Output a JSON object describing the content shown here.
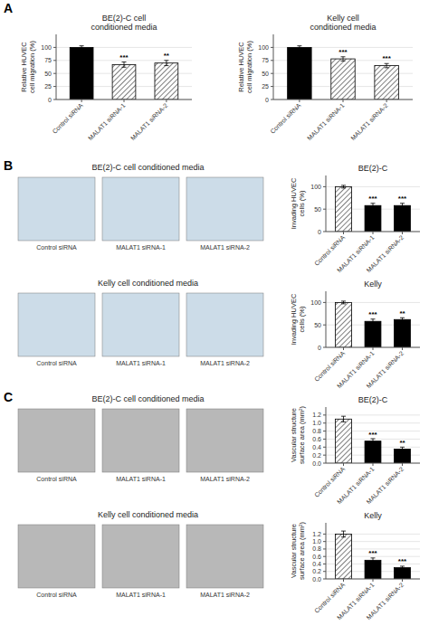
{
  "chart_data": [
    {
      "type": "bar",
      "title": "BE(2)-C cell\nconditioned media",
      "categories": [
        "Control siRNA",
        "MALAT1 siRNA-1",
        "MALAT1 siRNA-2"
      ],
      "values": [
        100,
        67,
        70
      ],
      "errors": [
        3,
        5,
        5
      ],
      "ylabel": "Relative HUVEC\ncell migration (%)",
      "ylim": [
        0,
        125
      ],
      "yticks": [
        0,
        25,
        50,
        75,
        100
      ],
      "annotations": [
        null,
        "***",
        "**"
      ],
      "colors": [
        "black",
        "hatched",
        "hatched"
      ]
    },
    {
      "type": "bar",
      "title": "Kelly cell\nconditioned media",
      "categories": [
        "Control siRNA",
        "MALAT1 siRNA-1",
        "MALAT1 siRNA-2"
      ],
      "values": [
        100,
        78,
        65
      ],
      "errors": [
        3,
        4,
        4
      ],
      "ylabel": "Relative HUVEC\ncell migration (%)",
      "ylim": [
        0,
        125
      ],
      "yticks": [
        0,
        25,
        50,
        75,
        100
      ],
      "annotations": [
        null,
        "***",
        "***"
      ],
      "colors": [
        "black",
        "hatched",
        "hatched"
      ]
    },
    {
      "type": "bar",
      "title": "BE(2)-C",
      "categories": [
        "Control siRNA",
        "MALAT1 siRNA-1",
        "MALAT1 siRNA-2"
      ],
      "values": [
        100,
        58,
        58
      ],
      "errors": [
        3,
        5,
        5
      ],
      "ylabel": "Invading HUVEC\ncells (%)",
      "ylim": [
        0,
        125
      ],
      "yticks": [
        0,
        50,
        100
      ],
      "annotations": [
        null,
        "***",
        "***"
      ],
      "colors": [
        "hatched",
        "black",
        "black"
      ]
    },
    {
      "type": "bar",
      "title": "Kelly",
      "categories": [
        "Control siRNA",
        "MALAT1 siRNA-1",
        "MALAT1 siRNA-2"
      ],
      "values": [
        100,
        58,
        62
      ],
      "errors": [
        3,
        5,
        4
      ],
      "ylabel": "Invading HUVEC\ncells (%)",
      "ylim": [
        0,
        125
      ],
      "yticks": [
        0,
        50,
        100
      ],
      "annotations": [
        null,
        "***",
        "**"
      ],
      "colors": [
        "hatched",
        "black",
        "black"
      ]
    },
    {
      "type": "bar",
      "title": "BE(2)-C",
      "categories": [
        "Control siRNA",
        "MALAT1 siRNA-1",
        "MALAT1 siRNA-2"
      ],
      "values": [
        1.1,
        0.55,
        0.35
      ],
      "errors": [
        0.07,
        0.06,
        0.05
      ],
      "ylabel": "Vascular structure\nsurface area (mm²)",
      "ylim": [
        0,
        1.4
      ],
      "yticks": [
        {
          "value": 0,
          "label": "0.0"
        },
        0.2,
        0.4,
        0.6,
        0.8,
        {
          "value": 1,
          "label": "1.0"
        },
        1.2
      ],
      "annotations": [
        null,
        "***",
        "**"
      ],
      "colors": [
        "hatched",
        "black",
        "black"
      ]
    },
    {
      "type": "bar",
      "title": "Kelly",
      "categories": [
        "Control siRNA",
        "MALAT1 siRNA-1",
        "MALAT1 siRNA-2"
      ],
      "values": [
        1.2,
        0.5,
        0.3
      ],
      "errors": [
        0.08,
        0.06,
        0.04
      ],
      "ylabel": "Vascular structure\nsurface area (mm²)",
      "ylim": [
        0,
        1.5
      ],
      "yticks": [
        {
          "value": 0,
          "label": "0.0"
        },
        0.2,
        0.4,
        0.6,
        0.8,
        {
          "value": 1,
          "label": "1.0"
        },
        1.2
      ],
      "annotations": [
        null,
        "***",
        "***"
      ],
      "colors": [
        "hatched",
        "black",
        "black"
      ]
    }
  ],
  "panels": [
    {
      "label": "A"
    },
    {
      "label": "B",
      "rows": [
        {
          "title": "BE(2)-C cell conditioned media",
          "image_color": "#ccdce8",
          "image_labels": [
            "Control siRNA",
            "MALAT1 siRNA-1",
            "MALAT1 siRNA-2"
          ]
        },
        {
          "title": "Kelly cell conditioned media",
          "image_color": "#ccdce8",
          "image_labels": [
            "Control siRNA",
            "MALAT1 siRNA-1",
            "MALAT1 siRNA-2"
          ]
        }
      ]
    },
    {
      "label": "C",
      "rows": [
        {
          "title": "BE(2)-C cell conditioned media",
          "image_color": "#b8b8b8",
          "image_labels": [
            "Control siRNA",
            "MALAT1 siRNA-1",
            "MALAT1 siRNA-2"
          ]
        },
        {
          "title": "Kelly cell conditioned media",
          "image_color": "#b8b8b8",
          "image_labels": [
            "Control siRNA",
            "MALAT1 siRNA-1",
            "MALAT1 siRNA-2"
          ]
        }
      ]
    }
  ]
}
